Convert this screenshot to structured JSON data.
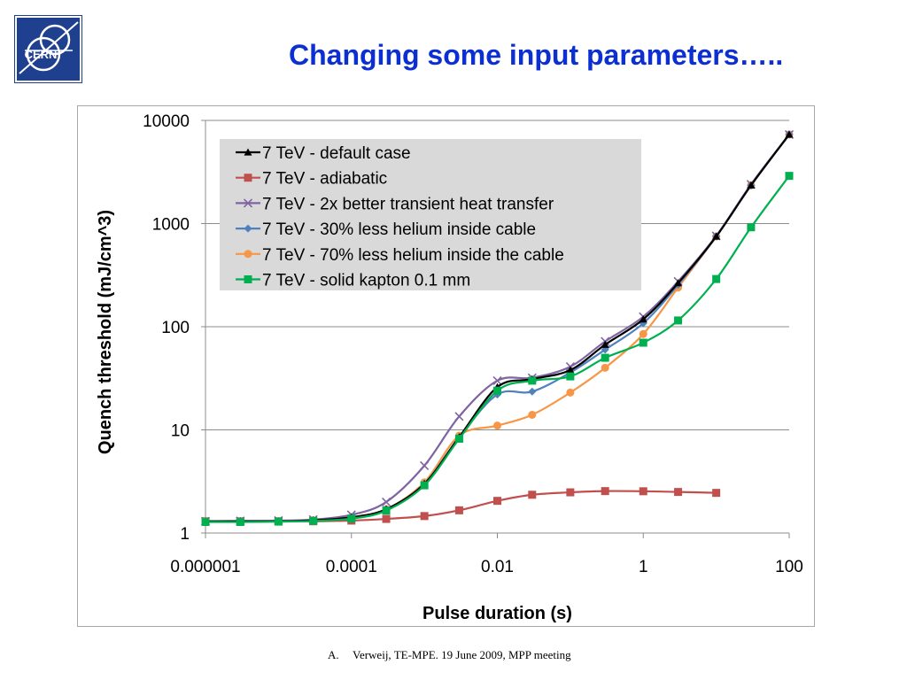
{
  "logo": {
    "text": "CERN"
  },
  "slide": {
    "title": "Changing some input parameters…..",
    "footer_number": "A.",
    "footer_text": "Verweij, TE-MPE. 19 June 2009, MPP meeting"
  },
  "chart_data": {
    "type": "line",
    "xlabel": "Pulse duration (s)",
    "ylabel": "Quench threshold (mJ/cm^3)",
    "x_scale": "log",
    "y_scale": "log",
    "xlim": [
      1e-06,
      100
    ],
    "ylim": [
      1,
      10000
    ],
    "x_ticks": [
      "0.000001",
      "0.0001",
      "0.01",
      "1",
      "100"
    ],
    "y_ticks": [
      "1",
      "10",
      "100",
      "1000",
      "10000"
    ],
    "grid": "horizontal",
    "legend_position": "top-left",
    "x": [
      1e-06,
      3e-06,
      1e-05,
      3e-05,
      0.0001,
      0.0003,
      0.001,
      0.003,
      0.01,
      0.03,
      0.1,
      0.3,
      1,
      3,
      10,
      30,
      100
    ],
    "series": [
      {
        "name": "7 TeV - default case",
        "color": "#000000",
        "marker": "triangle",
        "values": [
          1.3,
          1.3,
          1.3,
          1.33,
          1.42,
          1.7,
          3.0,
          8.5,
          26,
          31,
          38,
          67,
          118,
          265,
          750,
          2350,
          7300
        ]
      },
      {
        "name": "7 TeV - adiabatic",
        "color": "#c0504d",
        "marker": "square",
        "values": [
          1.3,
          1.3,
          1.3,
          1.3,
          1.32,
          1.37,
          1.46,
          1.66,
          2.05,
          2.35,
          2.48,
          2.55,
          2.54,
          2.5,
          2.45,
          null,
          null
        ]
      },
      {
        "name": "7 TeV - 2x better transient heat transfer",
        "color": "#8064a2",
        "marker": "x",
        "values": [
          1.3,
          1.31,
          1.32,
          1.35,
          1.5,
          2.0,
          4.5,
          13.5,
          30,
          32,
          41,
          72,
          125,
          275,
          760,
          2400,
          7300
        ]
      },
      {
        "name": "7 TeV - 30% less helium inside cable",
        "color": "#4f81bd",
        "marker": "diamond",
        "values": [
          1.3,
          1.3,
          1.3,
          1.33,
          1.42,
          1.7,
          3.0,
          8.5,
          22,
          23.5,
          36,
          60,
          108,
          255,
          750,
          2350,
          7300
        ]
      },
      {
        "name": "7 TeV - 70% less helium inside the cable",
        "color": "#f79646",
        "marker": "circle",
        "values": [
          1.3,
          1.3,
          1.3,
          1.33,
          1.42,
          1.7,
          3.1,
          8.8,
          11,
          14,
          23,
          40,
          85,
          240,
          750,
          2350,
          7300
        ]
      },
      {
        "name": "7 TeV - solid kapton 0.1 mm",
        "color": "#00b050",
        "marker": "square",
        "values": [
          1.28,
          1.28,
          1.29,
          1.31,
          1.38,
          1.65,
          2.9,
          8.2,
          24,
          30,
          33,
          50,
          70,
          115,
          290,
          920,
          2900
        ]
      }
    ]
  }
}
